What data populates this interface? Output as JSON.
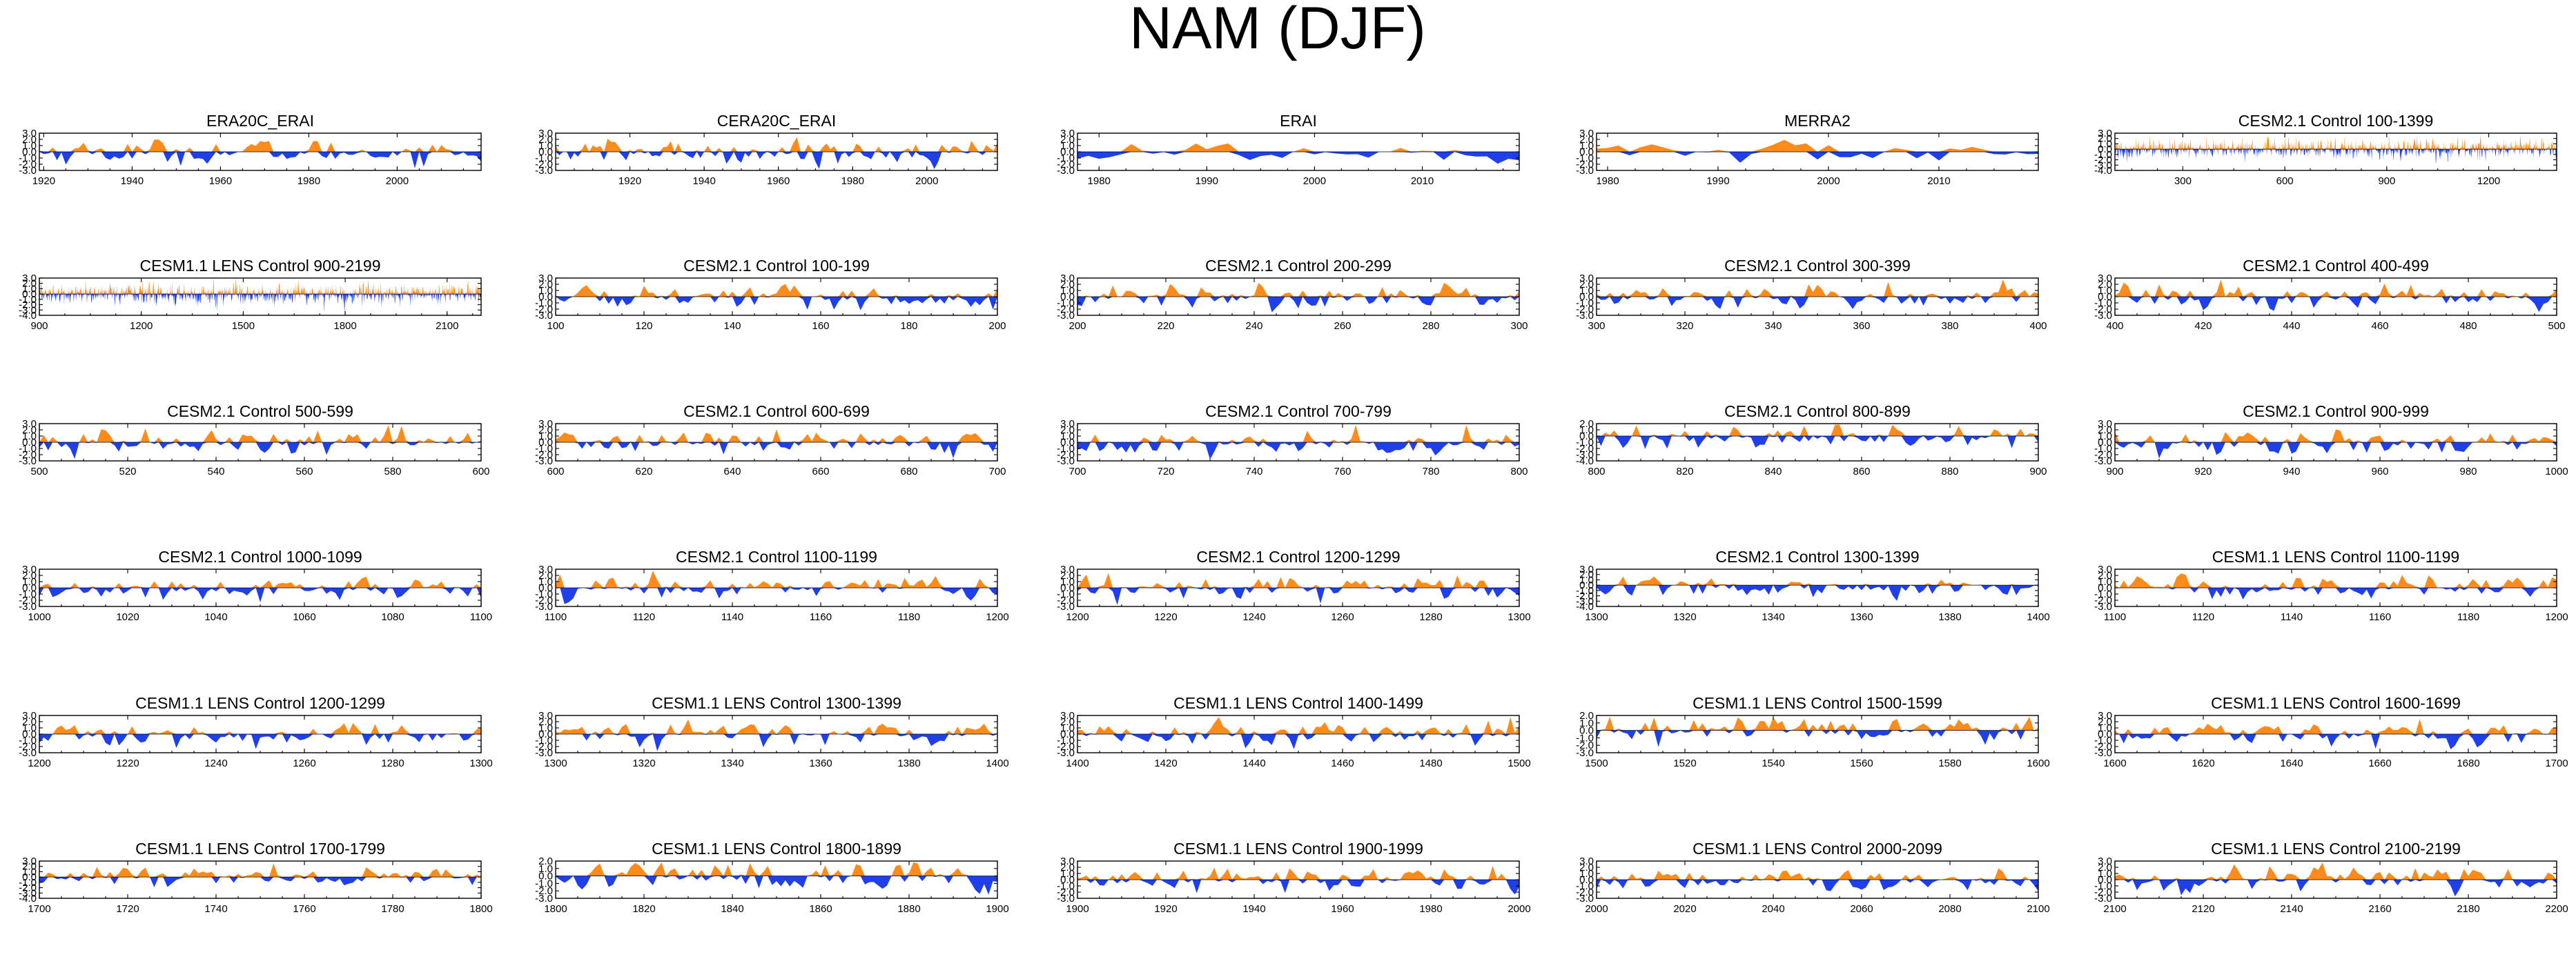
{
  "title": "NAM (DJF)",
  "colors": {
    "positive": "#ff8c1a",
    "negative": "#1f3fe8",
    "axis": "#000000"
  },
  "chart_data": [
    {
      "type": "area",
      "title": "ERA20C_ERAI",
      "xlim": [
        1919,
        2019
      ],
      "xticks": [
        1920,
        1940,
        1960,
        1980,
        2000
      ],
      "ylim": [
        -3,
        3
      ],
      "yticks": [
        3,
        2,
        1,
        0,
        -1,
        -2,
        -3
      ],
      "values": []
    },
    {
      "type": "area",
      "title": "CERA20C_ERAI",
      "xlim": [
        1900,
        2019
      ],
      "xticks": [
        1920,
        1940,
        1960,
        1980,
        2000
      ],
      "ylim": [
        -3,
        3
      ],
      "yticks": [
        3,
        2,
        1,
        0,
        -1,
        -2,
        -3
      ],
      "values": []
    },
    {
      "type": "area",
      "title": "ERAI",
      "xlim": [
        1978,
        2019
      ],
      "xticks": [
        1980,
        1990,
        2000,
        2010
      ],
      "ylim": [
        -3,
        3
      ],
      "yticks": [
        3,
        2,
        1,
        0,
        -1,
        -2,
        -3
      ],
      "values": []
    },
    {
      "type": "area",
      "title": "MERRA2",
      "xlim": [
        1979,
        2019
      ],
      "xticks": [
        1980,
        1990,
        2000,
        2010
      ],
      "ylim": [
        -3,
        3
      ],
      "yticks": [
        3,
        2,
        1,
        0,
        -1,
        -2,
        -3
      ],
      "values": []
    },
    {
      "type": "area",
      "title": "CESM2.1 Control 100-1399",
      "xlim": [
        100,
        1400
      ],
      "xticks": [
        300,
        600,
        900,
        1200
      ],
      "ylim": [
        -4,
        3
      ],
      "yticks": [
        3,
        2,
        1,
        0,
        -1,
        -2,
        -3,
        -4
      ],
      "values": []
    },
    {
      "type": "area",
      "title": "CESM1.1 LENS Control 900-2199",
      "xlim": [
        900,
        2200
      ],
      "xticks": [
        900,
        1200,
        1500,
        1800,
        2100
      ],
      "ylim": [
        -4,
        3
      ],
      "yticks": [
        3,
        2,
        1,
        0,
        -1,
        -2,
        -3,
        -4
      ],
      "values": []
    },
    {
      "type": "area",
      "title": "CESM2.1 Control 100-199",
      "xlim": [
        100,
        200
      ],
      "xticks": [
        100,
        120,
        140,
        160,
        180,
        200
      ],
      "ylim": [
        -3,
        3
      ],
      "yticks": [
        3,
        2,
        1,
        0,
        -1,
        -2,
        -3
      ],
      "values": []
    },
    {
      "type": "area",
      "title": "CESM2.1 Control 200-299",
      "xlim": [
        200,
        300
      ],
      "xticks": [
        200,
        220,
        240,
        260,
        280,
        300
      ],
      "ylim": [
        -3,
        3
      ],
      "yticks": [
        3,
        2,
        1,
        0,
        -1,
        -2,
        -3
      ],
      "values": []
    },
    {
      "type": "area",
      "title": "CESM2.1 Control 300-399",
      "xlim": [
        300,
        400
      ],
      "xticks": [
        300,
        320,
        340,
        360,
        380,
        400
      ],
      "ylim": [
        -3,
        3
      ],
      "yticks": [
        3,
        2,
        1,
        0,
        -1,
        -2,
        -3
      ],
      "values": []
    },
    {
      "type": "area",
      "title": "CESM2.1 Control 400-499",
      "xlim": [
        400,
        500
      ],
      "xticks": [
        400,
        420,
        440,
        460,
        480,
        500
      ],
      "ylim": [
        -3,
        3
      ],
      "yticks": [
        3,
        2,
        1,
        0,
        -1,
        -2,
        -3
      ],
      "values": []
    },
    {
      "type": "area",
      "title": "CESM2.1 Control 500-599",
      "xlim": [
        500,
        600
      ],
      "xticks": [
        500,
        520,
        540,
        560,
        580,
        600
      ],
      "ylim": [
        -3,
        3
      ],
      "yticks": [
        3,
        2,
        1,
        0,
        -1,
        -2,
        -3
      ],
      "values": []
    },
    {
      "type": "area",
      "title": "CESM2.1 Control 600-699",
      "xlim": [
        600,
        700
      ],
      "xticks": [
        600,
        620,
        640,
        660,
        680,
        700
      ],
      "ylim": [
        -3,
        3
      ],
      "yticks": [
        3,
        2,
        1,
        0,
        -1,
        -2,
        -3
      ],
      "values": []
    },
    {
      "type": "area",
      "title": "CESM2.1 Control 700-799",
      "xlim": [
        700,
        800
      ],
      "xticks": [
        700,
        720,
        740,
        760,
        780,
        800
      ],
      "ylim": [
        -3,
        3
      ],
      "yticks": [
        3,
        2,
        1,
        0,
        -1,
        -2,
        -3
      ],
      "values": []
    },
    {
      "type": "area",
      "title": "CESM2.1 Control 800-899",
      "xlim": [
        800,
        900
      ],
      "xticks": [
        800,
        820,
        840,
        860,
        880,
        900
      ],
      "ylim": [
        -4,
        2
      ],
      "yticks": [
        2,
        1,
        0,
        -1,
        -2,
        -3,
        -4
      ],
      "values": []
    },
    {
      "type": "area",
      "title": "CESM2.1 Control 900-999",
      "xlim": [
        900,
        1000
      ],
      "xticks": [
        900,
        920,
        940,
        960,
        980,
        1000
      ],
      "ylim": [
        -3,
        3
      ],
      "yticks": [
        3,
        2,
        1,
        0,
        -1,
        -2,
        -3
      ],
      "values": []
    },
    {
      "type": "area",
      "title": "CESM2.1 Control 1000-1099",
      "xlim": [
        1000,
        1100
      ],
      "xticks": [
        1000,
        1020,
        1040,
        1060,
        1080,
        1100
      ],
      "ylim": [
        -3,
        3
      ],
      "yticks": [
        3,
        2,
        1,
        0,
        -1,
        -2,
        -3
      ],
      "values": []
    },
    {
      "type": "area",
      "title": "CESM2.1 Control 1100-1199",
      "xlim": [
        1100,
        1200
      ],
      "xticks": [
        1100,
        1120,
        1140,
        1160,
        1180,
        1200
      ],
      "ylim": [
        -3,
        3
      ],
      "yticks": [
        3,
        2,
        1,
        0,
        -1,
        -2,
        -3
      ],
      "values": []
    },
    {
      "type": "area",
      "title": "CESM2.1 Control 1200-1299",
      "xlim": [
        1200,
        1300
      ],
      "xticks": [
        1200,
        1220,
        1240,
        1260,
        1280,
        1300
      ],
      "ylim": [
        -3,
        3
      ],
      "yticks": [
        3,
        2,
        1,
        0,
        -1,
        -2,
        -3
      ],
      "values": []
    },
    {
      "type": "area",
      "title": "CESM2.1 Control 1300-1399",
      "xlim": [
        1300,
        1400
      ],
      "xticks": [
        1300,
        1320,
        1340,
        1360,
        1380,
        1400
      ],
      "ylim": [
        -4,
        3
      ],
      "yticks": [
        3,
        2,
        1,
        0,
        -1,
        -2,
        -3,
        -4
      ],
      "values": []
    },
    {
      "type": "area",
      "title": "CESM1.1 LENS Control 1100-1199",
      "xlim": [
        1100,
        1200
      ],
      "xticks": [
        1100,
        1120,
        1140,
        1160,
        1180,
        1200
      ],
      "ylim": [
        -3,
        3
      ],
      "yticks": [
        3,
        2,
        1,
        0,
        -1,
        -2,
        -3
      ],
      "values": []
    },
    {
      "type": "area",
      "title": "CESM1.1 LENS Control 1200-1299",
      "xlim": [
        1200,
        1300
      ],
      "xticks": [
        1200,
        1220,
        1240,
        1260,
        1280,
        1300
      ],
      "ylim": [
        -3,
        3
      ],
      "yticks": [
        3,
        2,
        1,
        0,
        -1,
        -2,
        -3
      ],
      "values": []
    },
    {
      "type": "area",
      "title": "CESM1.1 LENS Control 1300-1399",
      "xlim": [
        1300,
        1400
      ],
      "xticks": [
        1300,
        1320,
        1340,
        1360,
        1380,
        1400
      ],
      "ylim": [
        -3,
        3
      ],
      "yticks": [
        3,
        2,
        1,
        0,
        -1,
        -2,
        -3
      ],
      "values": []
    },
    {
      "type": "area",
      "title": "CESM1.1 LENS Control 1400-1499",
      "xlim": [
        1400,
        1500
      ],
      "xticks": [
        1400,
        1420,
        1440,
        1460,
        1480,
        1500
      ],
      "ylim": [
        -3,
        3
      ],
      "yticks": [
        3,
        2,
        1,
        0,
        -1,
        -2,
        -3
      ],
      "values": []
    },
    {
      "type": "area",
      "title": "CESM1.1 LENS Control 1500-1599",
      "xlim": [
        1500,
        1600
      ],
      "xticks": [
        1500,
        1520,
        1540,
        1560,
        1580,
        1600
      ],
      "ylim": [
        -3,
        2
      ],
      "yticks": [
        2,
        1,
        0,
        -1,
        -2,
        -3
      ],
      "values": []
    },
    {
      "type": "area",
      "title": "CESM1.1 LENS Control 1600-1699",
      "xlim": [
        1600,
        1700
      ],
      "xticks": [
        1600,
        1620,
        1640,
        1660,
        1680,
        1700
      ],
      "ylim": [
        -3,
        3
      ],
      "yticks": [
        3,
        2,
        1,
        0,
        -1,
        -2,
        -3
      ],
      "values": []
    },
    {
      "type": "area",
      "title": "CESM1.1 LENS Control 1700-1799",
      "xlim": [
        1700,
        1800
      ],
      "xticks": [
        1700,
        1720,
        1740,
        1760,
        1780,
        1800
      ],
      "ylim": [
        -4,
        3
      ],
      "yticks": [
        3,
        2,
        1,
        0,
        -1,
        -2,
        -3,
        -4
      ],
      "values": []
    },
    {
      "type": "area",
      "title": "CESM1.1 LENS Control 1800-1899",
      "xlim": [
        1800,
        1900
      ],
      "xticks": [
        1800,
        1820,
        1840,
        1860,
        1880,
        1900
      ],
      "ylim": [
        -3,
        2
      ],
      "yticks": [
        2,
        1,
        0,
        -1,
        -2,
        -3
      ],
      "values": []
    },
    {
      "type": "area",
      "title": "CESM1.1 LENS Control 1900-1999",
      "xlim": [
        1900,
        2000
      ],
      "xticks": [
        1900,
        1920,
        1940,
        1960,
        1980,
        2000
      ],
      "ylim": [
        -3,
        3
      ],
      "yticks": [
        3,
        2,
        1,
        0,
        -1,
        -2,
        -3
      ],
      "values": []
    },
    {
      "type": "area",
      "title": "CESM1.1 LENS Control 2000-2099",
      "xlim": [
        2000,
        2100
      ],
      "xticks": [
        2000,
        2020,
        2040,
        2060,
        2080,
        2100
      ],
      "ylim": [
        -3,
        3
      ],
      "yticks": [
        3,
        2,
        1,
        0,
        -1,
        -2,
        -3
      ],
      "values": []
    },
    {
      "type": "area",
      "title": "CESM1.1 LENS Control 2100-2199",
      "xlim": [
        2100,
        2200
      ],
      "xticks": [
        2100,
        2120,
        2140,
        2160,
        2180,
        2200
      ],
      "ylim": [
        -3,
        3
      ],
      "yticks": [
        3,
        2,
        1,
        0,
        -1,
        -2,
        -3
      ],
      "values": []
    }
  ]
}
